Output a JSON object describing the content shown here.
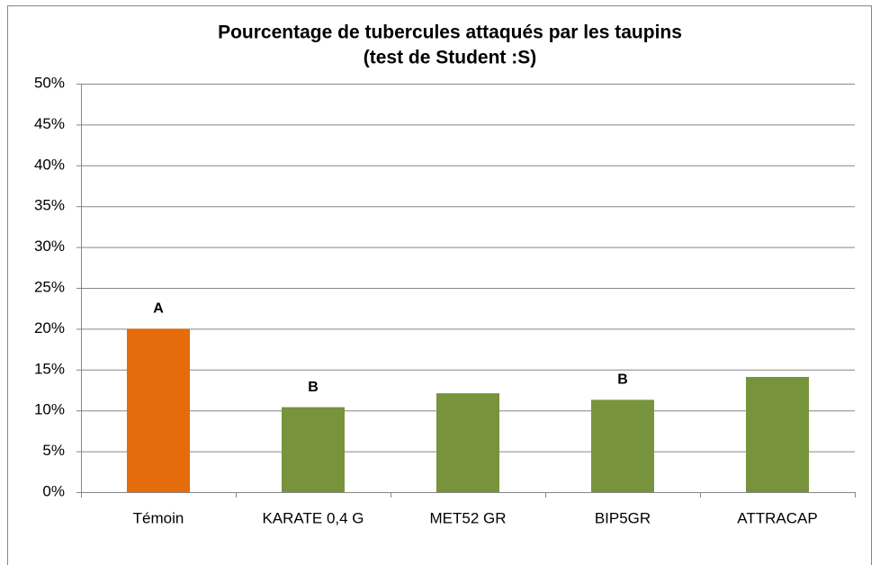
{
  "chart_data": {
    "type": "bar",
    "title": "Pourcentage de tubercules attaqués par les taupins",
    "subtitle": "(test de Student :S)",
    "categories": [
      "Témoin",
      "KARATE 0,4 G",
      "MET52 GR",
      "BIP5GR",
      "ATTRACAP"
    ],
    "values": [
      20,
      10.4,
      12.1,
      11.3,
      14.1
    ],
    "colors": [
      "#e46c0a",
      "#77933c",
      "#77933c",
      "#77933c",
      "#77933c"
    ],
    "bar_labels": [
      "A",
      "B",
      null,
      "B",
      null
    ],
    "ylim": [
      0,
      50
    ],
    "yticks": [
      {
        "value": 0,
        "label": "0%"
      },
      {
        "value": 5,
        "label": "5%"
      },
      {
        "value": 10,
        "label": "10%"
      },
      {
        "value": 15,
        "label": "15%"
      },
      {
        "value": 20,
        "label": "20%"
      },
      {
        "value": 25,
        "label": "25%"
      },
      {
        "value": 30,
        "label": "30%"
      },
      {
        "value": 35,
        "label": "35%"
      },
      {
        "value": 40,
        "label": "40%"
      },
      {
        "value": 45,
        "label": "45%"
      },
      {
        "value": 50,
        "label": "50%"
      }
    ],
    "grid": true
  }
}
